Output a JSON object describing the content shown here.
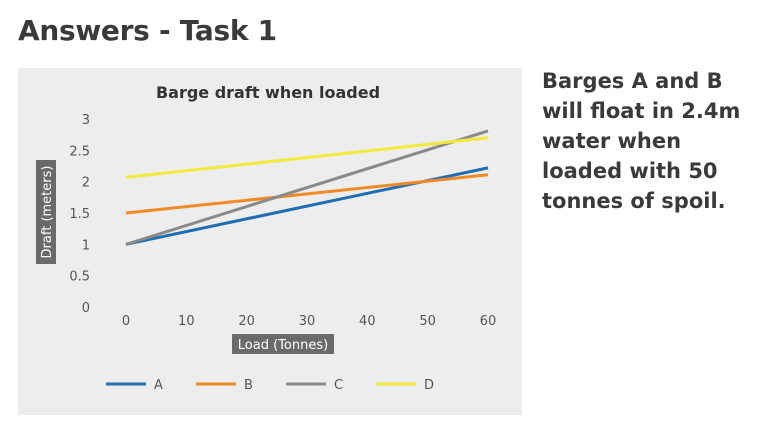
{
  "page": {
    "title": "Answers - Task 1",
    "answer": "Barges A and B will float in 2.4m water when loaded with 50 tonnes of spoil."
  },
  "chart_data": {
    "type": "line",
    "title": "Barge draft when loaded",
    "xlabel": "Load (Tonnes)",
    "ylabel": "Draft (meters)",
    "x_ticks": [
      0,
      10,
      20,
      30,
      40,
      50,
      60
    ],
    "y_ticks": [
      "0",
      "0.5",
      "1",
      "1.5",
      "2",
      "2.5",
      "3"
    ],
    "xlim": [
      0,
      60
    ],
    "ylim": [
      0,
      3
    ],
    "grid": false,
    "legend_position": "bottom",
    "series": [
      {
        "name": "A",
        "x": [
          0,
          60
        ],
        "values": [
          1.0,
          2.22
        ],
        "color": "#1f6db3"
      },
      {
        "name": "B",
        "x": [
          0,
          60
        ],
        "values": [
          1.5,
          2.11
        ],
        "color": "#f08a24"
      },
      {
        "name": "C",
        "x": [
          0,
          60
        ],
        "values": [
          1.0,
          2.81
        ],
        "color": "#8a8a8a"
      },
      {
        "name": "D",
        "x": [
          0,
          60
        ],
        "values": [
          2.07,
          2.7
        ],
        "color": "#f2ea3a"
      }
    ]
  }
}
